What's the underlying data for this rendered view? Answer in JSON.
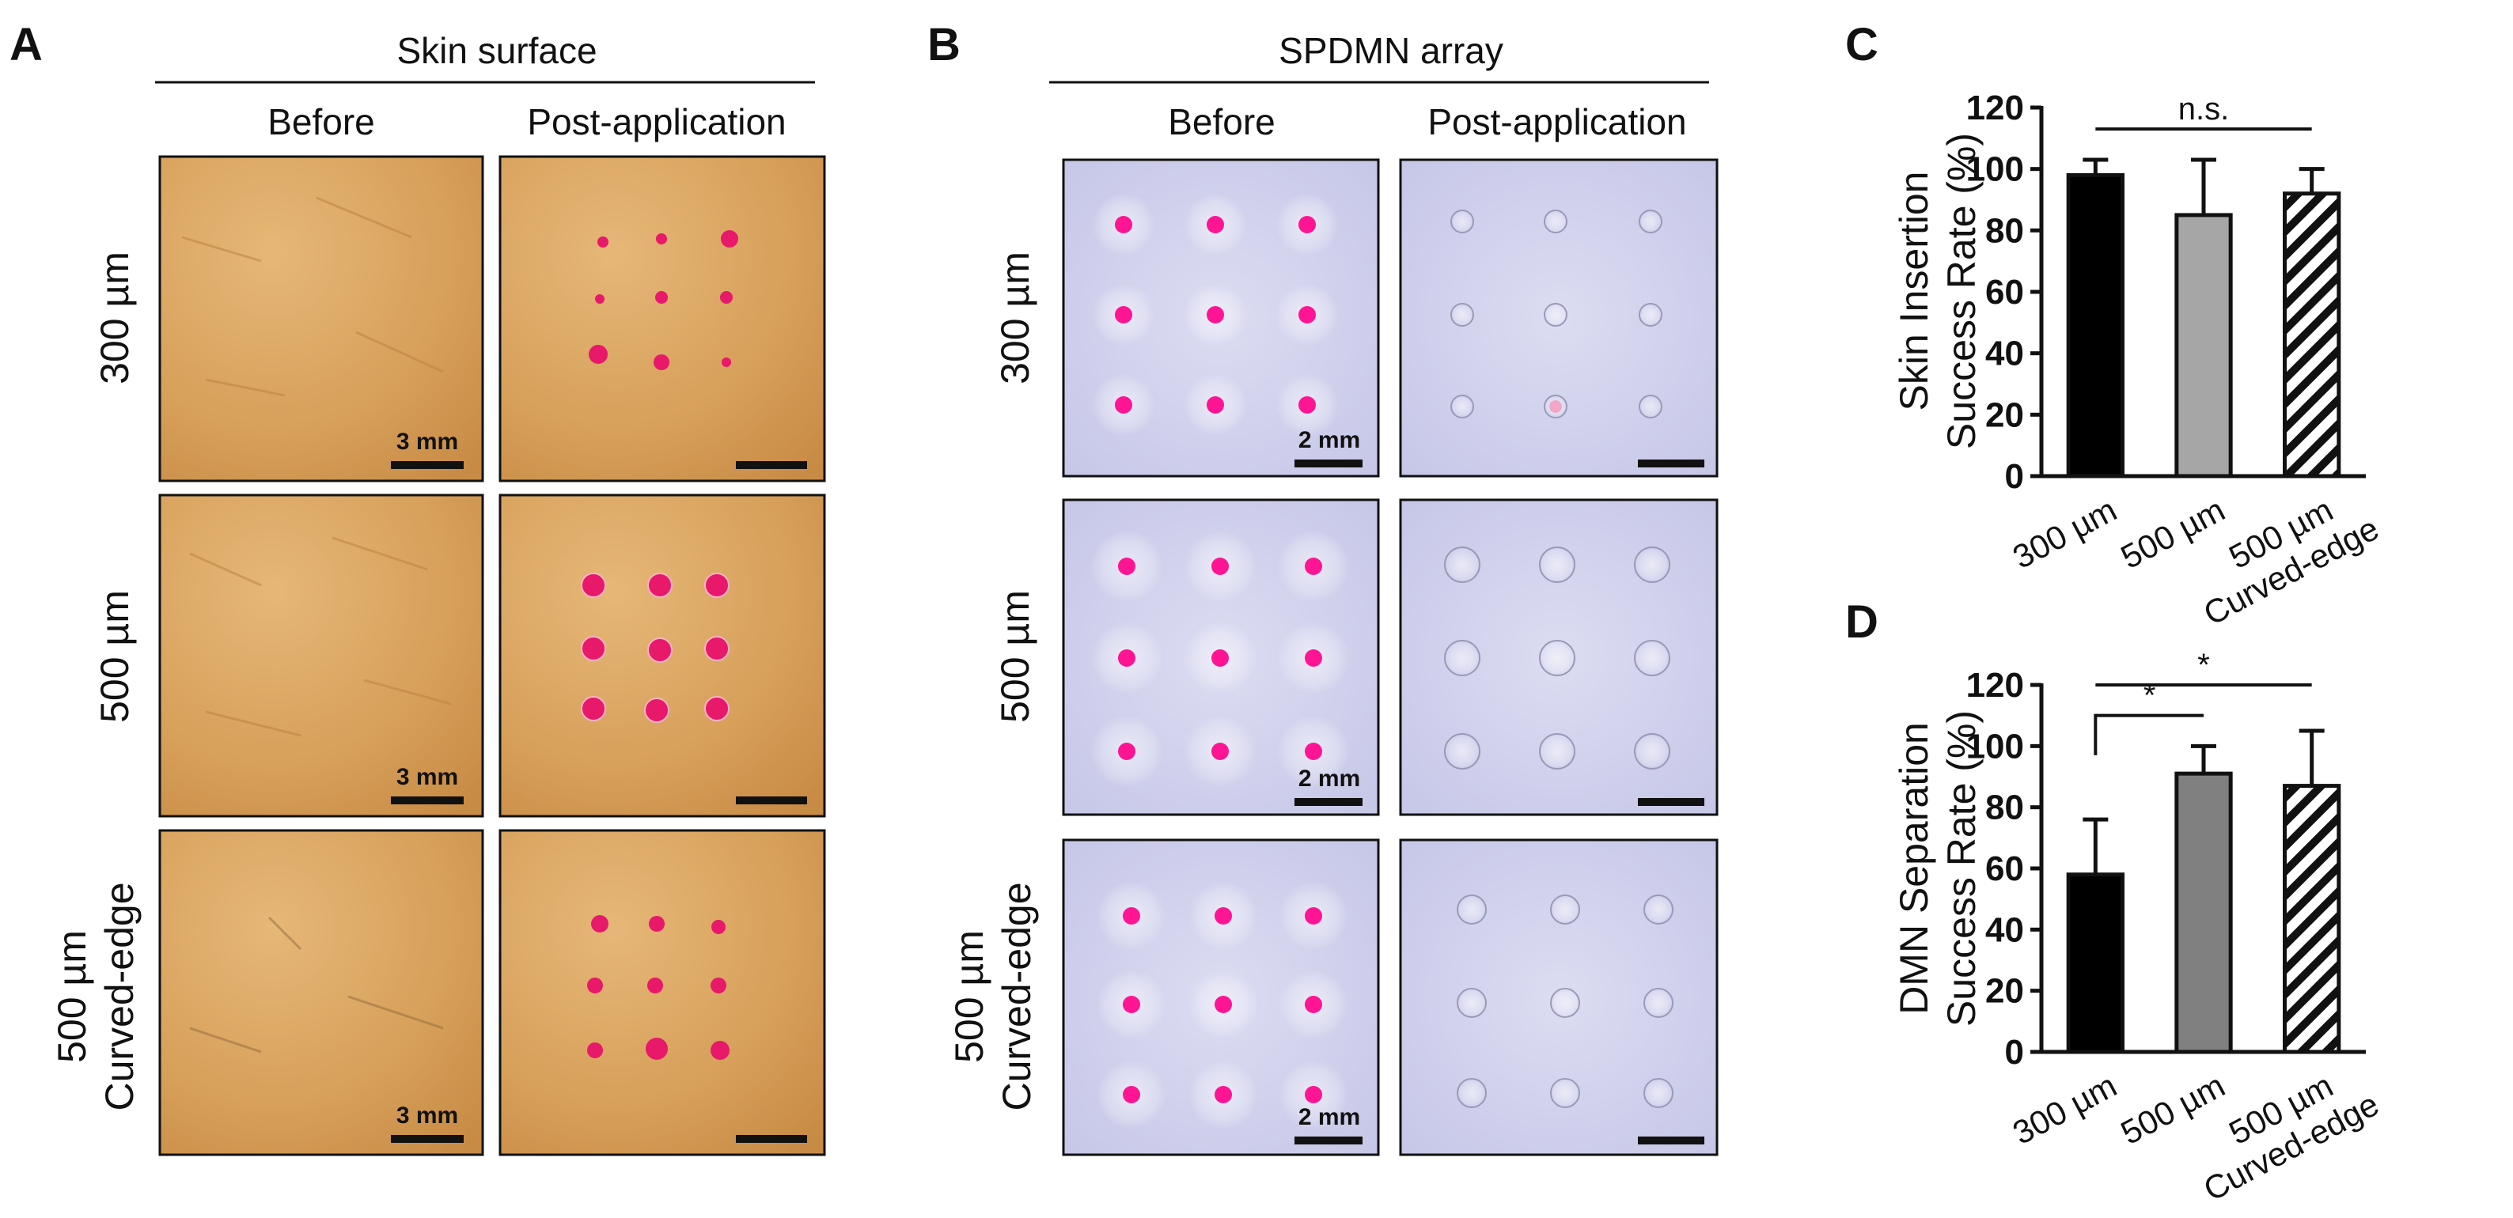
{
  "panels": {
    "A": {
      "label": "A",
      "title": "Skin surface",
      "columns": [
        "Before",
        "Post-application"
      ],
      "rows": [
        {
          "label_lines": [
            "300 µm"
          ],
          "scale_bar": "3 mm"
        },
        {
          "label_lines": [
            "500 µm"
          ],
          "scale_bar": "3 mm"
        },
        {
          "label_lines": [
            "500 µm",
            "Curved-edge"
          ],
          "scale_bar": "3 mm"
        }
      ],
      "colors": {
        "skin": "#d9a35e",
        "skin_dark": "#c98f4a",
        "dot": "#e8186a"
      }
    },
    "B": {
      "label": "B",
      "title": "SPDMN array",
      "columns": [
        "Before",
        "Post-application"
      ],
      "rows": [
        {
          "label_lines": [
            "300 µm"
          ],
          "scale_bar": "2 mm"
        },
        {
          "label_lines": [
            "500 µm"
          ],
          "scale_bar": "2 mm"
        },
        {
          "label_lines": [
            "500 µm",
            "Curved-edge"
          ],
          "scale_bar": "2 mm"
        }
      ],
      "colors": {
        "array": "#cfd0ec",
        "dot": "#ff1493"
      }
    }
  },
  "chart_data": [
    {
      "panel_label": "C",
      "type": "bar",
      "ylabel_lines": [
        "Skin Insertion",
        "Success Rate (%)"
      ],
      "ylim": [
        0,
        120
      ],
      "yticks": [
        0,
        20,
        40,
        60,
        80,
        100,
        120
      ],
      "categories": [
        {
          "lines": [
            "300 µm"
          ]
        },
        {
          "lines": [
            "500 µm"
          ]
        },
        {
          "lines": [
            "500 µm",
            "Curved-edge"
          ]
        }
      ],
      "values": [
        98,
        85,
        92
      ],
      "errors": [
        5,
        18,
        8
      ],
      "fills": [
        "#000000",
        "#a6a6a6",
        "hatch"
      ],
      "significance": [
        {
          "from": 0,
          "to": 2,
          "label": "n.s.",
          "y": 113
        }
      ]
    },
    {
      "panel_label": "D",
      "type": "bar",
      "ylabel_lines": [
        "DMN Separation",
        "Success Rate (%)"
      ],
      "ylim": [
        0,
        120
      ],
      "yticks": [
        0,
        20,
        40,
        60,
        80,
        100,
        120
      ],
      "categories": [
        {
          "lines": [
            "300 µm"
          ]
        },
        {
          "lines": [
            "500 µm"
          ]
        },
        {
          "lines": [
            "500 µm",
            "Curved-edge"
          ]
        }
      ],
      "values": [
        58,
        91,
        87
      ],
      "errors": [
        18,
        9,
        18
      ],
      "fills": [
        "#000000",
        "#808080",
        "hatch"
      ],
      "significance": [
        {
          "from": 0,
          "to": 1,
          "label": "*",
          "y": 110
        },
        {
          "from": 0,
          "to": 2,
          "label": "*",
          "y": 120
        }
      ]
    }
  ]
}
